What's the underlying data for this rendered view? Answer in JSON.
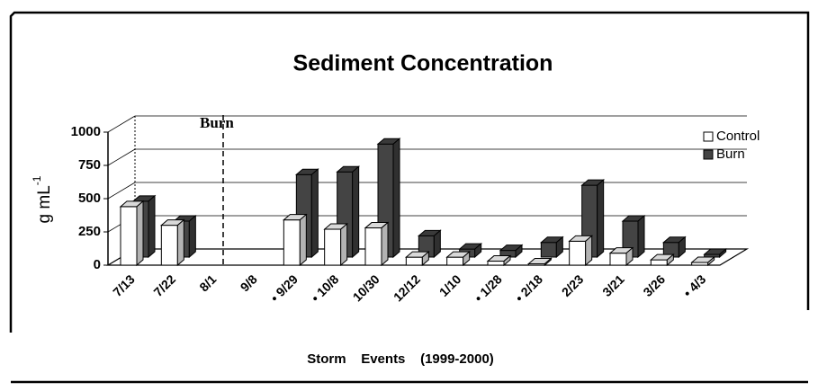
{
  "chart_data": {
    "type": "bar3d",
    "title": "Sediment  Concentration",
    "ylabel": "g mL",
    "ylabel_exponent": "-1",
    "xlabel": "Storm    Events    (1999-2000)",
    "annotation": "Burn",
    "categories": [
      "7/13",
      "7/22",
      "8/1",
      "9/8",
      "• 9/29",
      "• 10/8",
      "10/30",
      "12/12",
      "1/10",
      "• 1/28",
      "• 2/18",
      "2/23",
      "3/21",
      "3/26",
      "• 4/3"
    ],
    "series": [
      {
        "name": "Control",
        "color": "#ffffff",
        "values": [
          440,
          300,
          null,
          null,
          340,
          270,
          280,
          60,
          60,
          30,
          10,
          180,
          90,
          40,
          20
        ]
      },
      {
        "name": "Burn",
        "color": "#444444",
        "values": [
          420,
          270,
          null,
          null,
          620,
          640,
          850,
          160,
          60,
          50,
          110,
          540,
          270,
          110,
          20
        ]
      }
    ],
    "ylim": [
      0,
      1000
    ],
    "yticks": [
      0,
      250,
      500,
      750,
      1000
    ],
    "grid": true,
    "legend": "top-right"
  }
}
